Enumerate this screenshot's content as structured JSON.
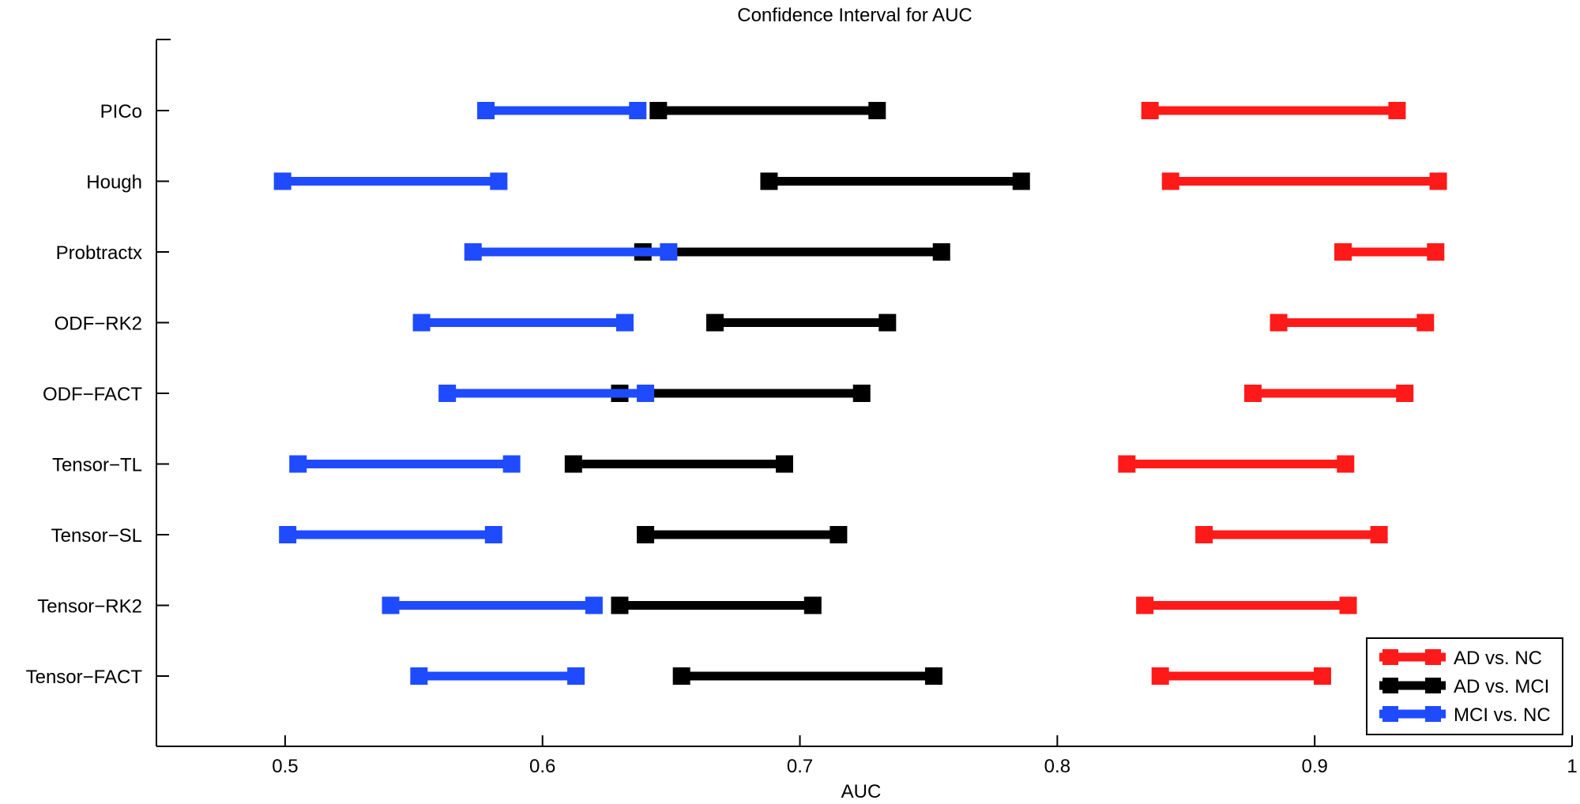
{
  "chart_data": {
    "type": "interval",
    "title": "Confidence Interval for AUC",
    "xlabel": "AUC",
    "ylabel": "",
    "xlim": [
      0.45,
      1.0
    ],
    "xticks": [
      0.5,
      0.6,
      0.7,
      0.8,
      0.9,
      1
    ],
    "xtick_labels": [
      "0.5",
      "0.6",
      "0.7",
      "0.8",
      "0.9",
      "1"
    ],
    "categories": [
      "PICo",
      "Hough",
      "Probtractx",
      "ODF−RK2",
      "ODF−FACT",
      "Tensor−TL",
      "Tensor−SL",
      "Tensor−RK2",
      "Tensor−FACT"
    ],
    "legend_position": "bottom-right",
    "grid": false,
    "series": [
      {
        "name": "AD vs. NC",
        "color": "#ff1a1a",
        "intervals": [
          [
            0.836,
            0.932
          ],
          [
            0.844,
            0.948
          ],
          [
            0.911,
            0.947
          ],
          [
            0.886,
            0.943
          ],
          [
            0.876,
            0.935
          ],
          [
            0.827,
            0.912
          ],
          [
            0.857,
            0.925
          ],
          [
            0.834,
            0.913
          ],
          [
            0.84,
            0.903
          ]
        ]
      },
      {
        "name": "AD vs. MCI",
        "color": "#000000",
        "intervals": [
          [
            0.645,
            0.73
          ],
          [
            0.688,
            0.786
          ],
          [
            0.639,
            0.755
          ],
          [
            0.667,
            0.734
          ],
          [
            0.63,
            0.724
          ],
          [
            0.612,
            0.694
          ],
          [
            0.64,
            0.715
          ],
          [
            0.63,
            0.705
          ],
          [
            0.654,
            0.752
          ]
        ]
      },
      {
        "name": "MCI vs. NC",
        "color": "#1f4bff",
        "intervals": [
          [
            0.578,
            0.637
          ],
          [
            0.499,
            0.583
          ],
          [
            0.573,
            0.649
          ],
          [
            0.553,
            0.632
          ],
          [
            0.563,
            0.64
          ],
          [
            0.505,
            0.588
          ],
          [
            0.501,
            0.581
          ],
          [
            0.541,
            0.62
          ],
          [
            0.552,
            0.613
          ]
        ]
      }
    ]
  }
}
